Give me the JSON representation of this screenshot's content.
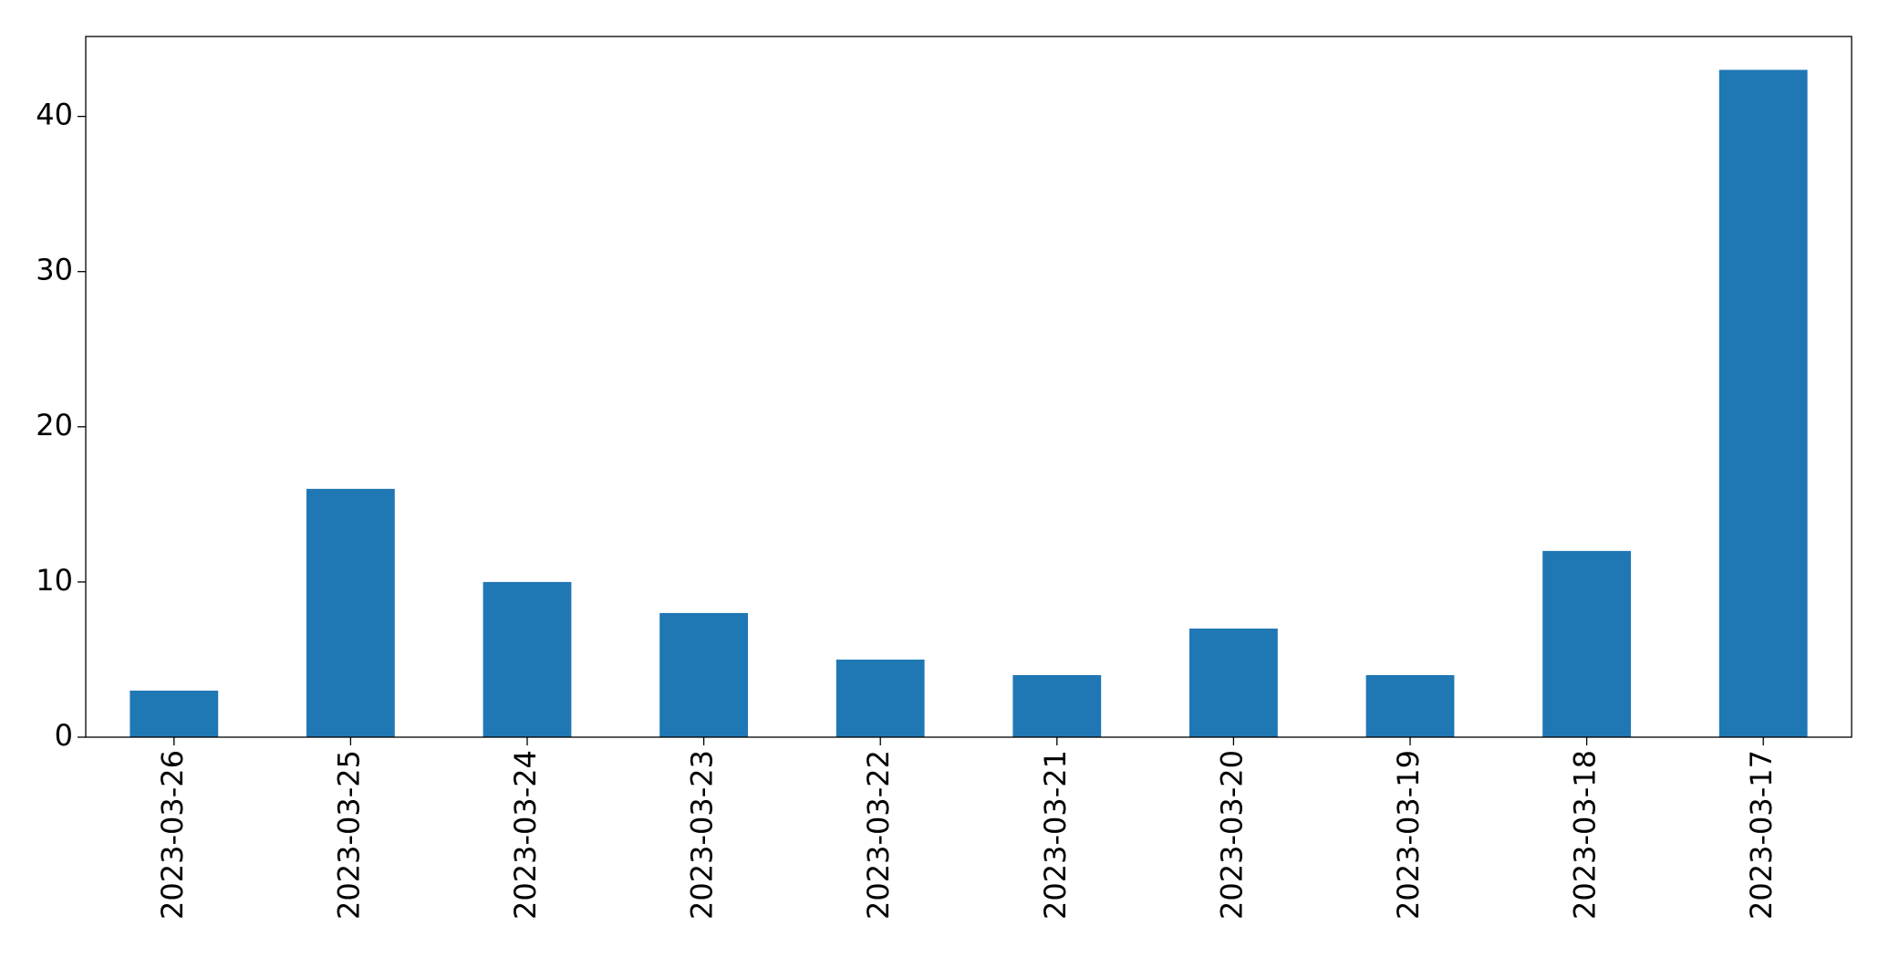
{
  "chart_data": {
    "type": "bar",
    "categories": [
      "2023-03-26",
      "2023-03-25",
      "2023-03-24",
      "2023-03-23",
      "2023-03-22",
      "2023-03-21",
      "2023-03-20",
      "2023-03-19",
      "2023-03-18",
      "2023-03-17"
    ],
    "values": [
      3,
      16,
      10,
      8,
      5,
      4,
      7,
      4,
      12,
      43
    ],
    "color": "#1f77b4",
    "ylim": [
      0,
      45.15
    ],
    "yticks": [
      0,
      10,
      20,
      30,
      40
    ],
    "grid": false
  }
}
